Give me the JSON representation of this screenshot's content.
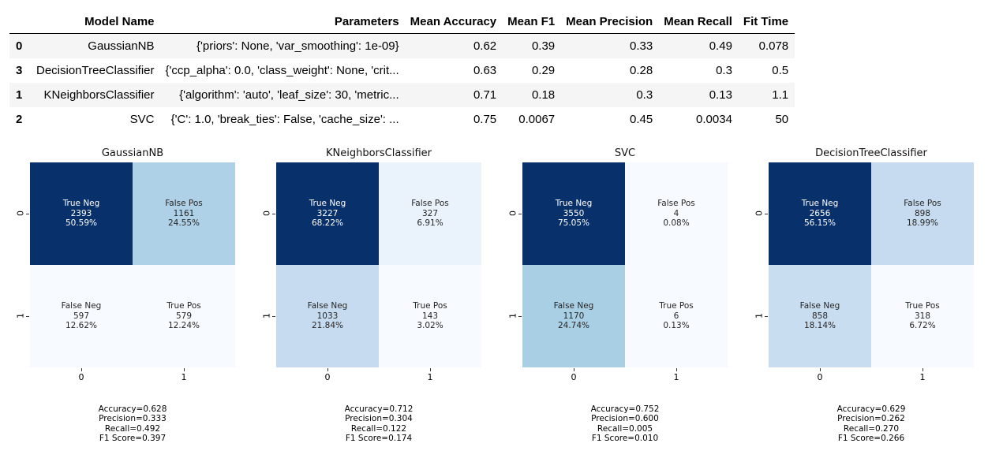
{
  "table": {
    "headers": [
      "",
      "Model Name",
      "Parameters",
      "Mean Accuracy",
      "Mean F1",
      "Mean Precision",
      "Mean Recall",
      "Fit Time"
    ],
    "rows": [
      {
        "index": "0",
        "model": "GaussianNB",
        "params": "{'priors': None, 'var_smoothing': 1e-09}",
        "accuracy": "0.62",
        "f1": "0.39",
        "precision": "0.33",
        "recall": "0.49",
        "fit_time": "0.078"
      },
      {
        "index": "3",
        "model": "DecisionTreeClassifier",
        "params": "{'ccp_alpha': 0.0, 'class_weight': None, 'crit...",
        "accuracy": "0.63",
        "f1": "0.29",
        "precision": "0.28",
        "recall": "0.3",
        "fit_time": "0.5"
      },
      {
        "index": "1",
        "model": "KNeighborsClassifier",
        "params": "{'algorithm': 'auto', 'leaf_size': 30, 'metric...",
        "accuracy": "0.71",
        "f1": "0.18",
        "precision": "0.3",
        "recall": "0.13",
        "fit_time": "1.1"
      },
      {
        "index": "2",
        "model": "SVC",
        "params": "{'C': 1.0, 'break_ties': False, 'cache_size': ...",
        "accuracy": "0.75",
        "f1": "0.0067",
        "precision": "0.45",
        "recall": "0.0034",
        "fit_time": "50"
      }
    ]
  },
  "chart_data": [
    {
      "type": "heatmap",
      "title": "GaussianNB",
      "x_ticks": [
        "0",
        "1"
      ],
      "y_ticks": [
        "0",
        "1"
      ],
      "cells": [
        {
          "label": "True Neg",
          "count": "2393",
          "pct": "50.59%",
          "color": "#08306b",
          "text_color": "#ffffff"
        },
        {
          "label": "False Pos",
          "count": "1161",
          "pct": "24.55%",
          "color": "#afd1e7",
          "text_color": "#262626"
        },
        {
          "label": "False Neg",
          "count": "597",
          "pct": "12.62%",
          "color": "#f7fbff",
          "text_color": "#262626"
        },
        {
          "label": "True Pos",
          "count": "579",
          "pct": "12.24%",
          "color": "#f7fbff",
          "text_color": "#262626"
        }
      ],
      "stats": [
        "Accuracy=0.628",
        "Precision=0.333",
        "Recall=0.492",
        "F1 Score=0.397"
      ]
    },
    {
      "type": "heatmap",
      "title": "KNeighborsClassifier",
      "x_ticks": [
        "0",
        "1"
      ],
      "y_ticks": [
        "0",
        "1"
      ],
      "cells": [
        {
          "label": "True Neg",
          "count": "3227",
          "pct": "68.22%",
          "color": "#08306b",
          "text_color": "#ffffff"
        },
        {
          "label": "False Pos",
          "count": "327",
          "pct": "6.91%",
          "color": "#eaf2fb",
          "text_color": "#262626"
        },
        {
          "label": "False Neg",
          "count": "1033",
          "pct": "21.84%",
          "color": "#c6dbef",
          "text_color": "#262626"
        },
        {
          "label": "True Pos",
          "count": "143",
          "pct": "3.02%",
          "color": "#f7fbff",
          "text_color": "#262626"
        }
      ],
      "stats": [
        "Accuracy=0.712",
        "Precision=0.304",
        "Recall=0.122",
        "F1 Score=0.174"
      ]
    },
    {
      "type": "heatmap",
      "title": "SVC",
      "x_ticks": [
        "0",
        "1"
      ],
      "y_ticks": [
        "0",
        "1"
      ],
      "cells": [
        {
          "label": "True Neg",
          "count": "3550",
          "pct": "75.05%",
          "color": "#08306b",
          "text_color": "#ffffff"
        },
        {
          "label": "False Pos",
          "count": "4",
          "pct": "0.08%",
          "color": "#f7fbff",
          "text_color": "#262626"
        },
        {
          "label": "False Neg",
          "count": "1170",
          "pct": "24.74%",
          "color": "#a9cfe5",
          "text_color": "#262626"
        },
        {
          "label": "True Pos",
          "count": "6",
          "pct": "0.13%",
          "color": "#f7fbff",
          "text_color": "#262626"
        }
      ],
      "stats": [
        "Accuracy=0.752",
        "Precision=0.600",
        "Recall=0.005",
        "F1 Score=0.010"
      ]
    },
    {
      "type": "heatmap",
      "title": "DecisionTreeClassifier",
      "x_ticks": [
        "0",
        "1"
      ],
      "y_ticks": [
        "0",
        "1"
      ],
      "cells": [
        {
          "label": "True Neg",
          "count": "2656",
          "pct": "56.15%",
          "color": "#08306b",
          "text_color": "#ffffff"
        },
        {
          "label": "False Pos",
          "count": "898",
          "pct": "18.99%",
          "color": "#c6dbef",
          "text_color": "#262626"
        },
        {
          "label": "False Neg",
          "count": "858",
          "pct": "18.14%",
          "color": "#c9ddf0",
          "text_color": "#262626"
        },
        {
          "label": "True Pos",
          "count": "318",
          "pct": "6.72%",
          "color": "#f7fbff",
          "text_color": "#262626"
        }
      ],
      "stats": [
        "Accuracy=0.629",
        "Precision=0.262",
        "Recall=0.270",
        "F1 Score=0.266"
      ]
    }
  ]
}
